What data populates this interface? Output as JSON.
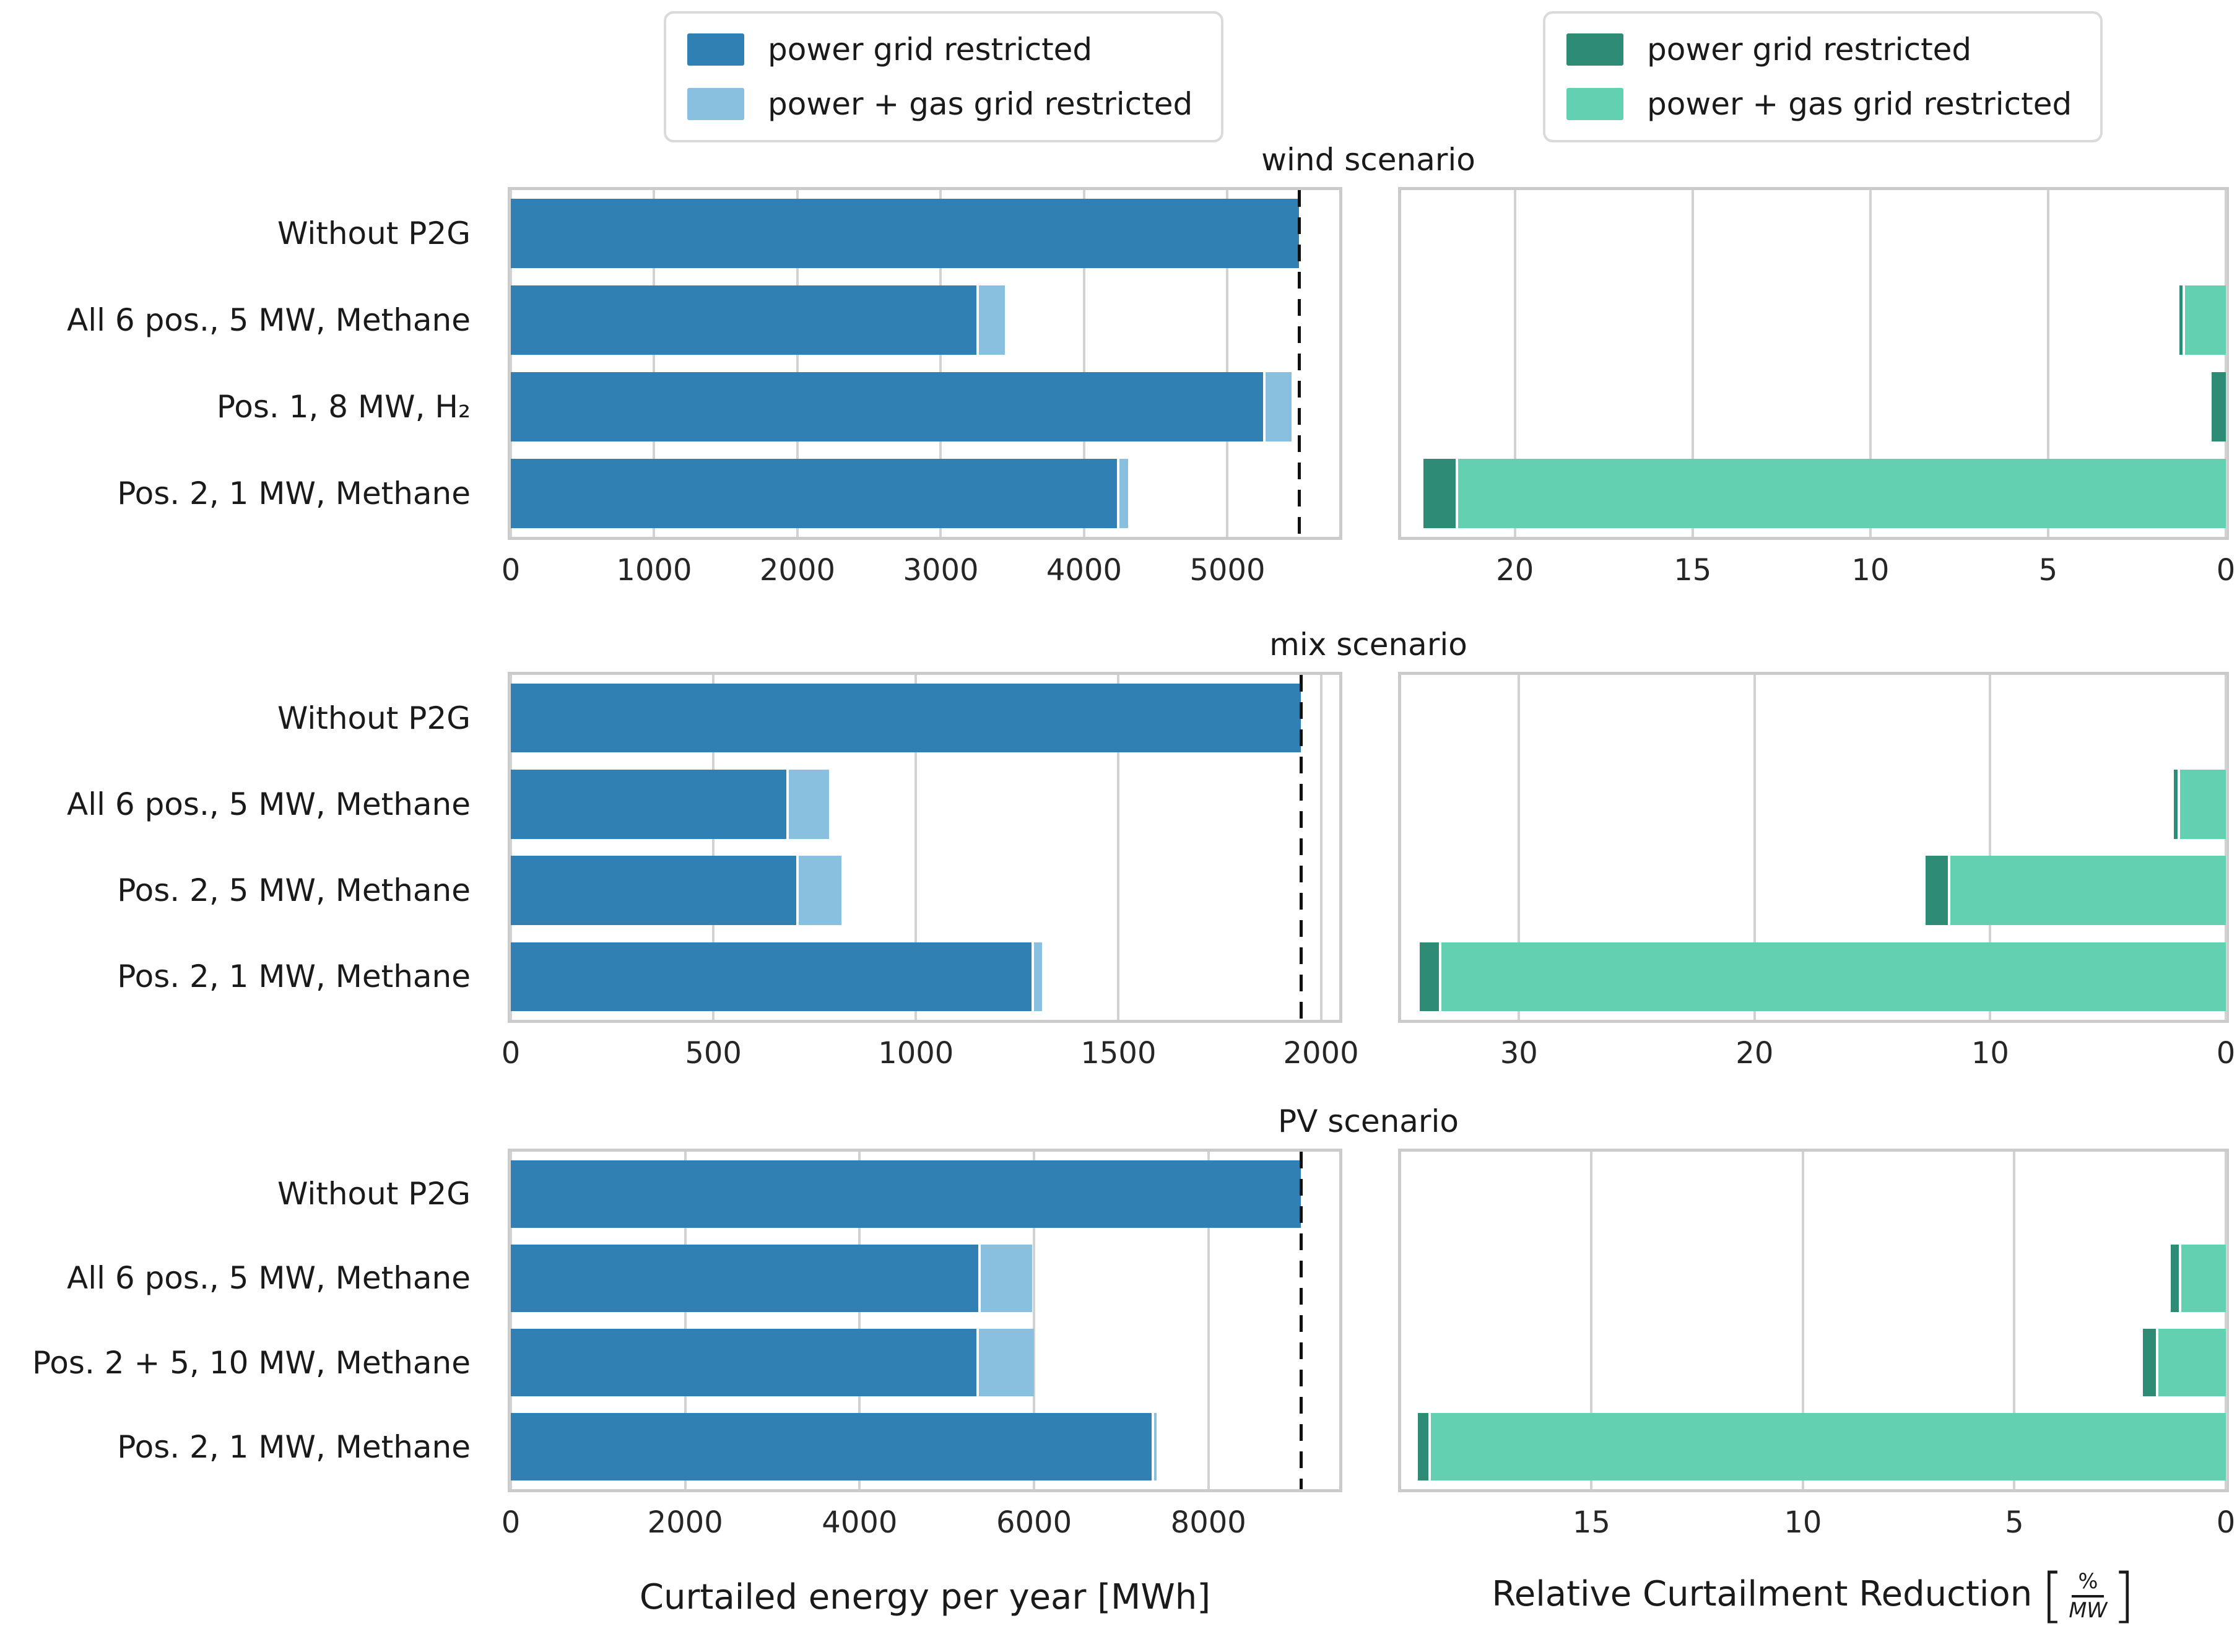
{
  "legends": {
    "left": {
      "items": [
        {
          "label": "power grid restricted",
          "color": "#3080b3"
        },
        {
          "label": "power + gas grid restricted",
          "color": "#89bfdf"
        }
      ]
    },
    "right": {
      "items": [
        {
          "label": "power grid restricted",
          "color": "#2e8b76"
        },
        {
          "label": "power + gas grid restricted",
          "color": "#64d0b2"
        }
      ]
    }
  },
  "xlabels": {
    "left": "Curtailed energy per year [MWh]",
    "right_prefix": "Relative Curtailment Reduction",
    "right_frac_num": "%",
    "right_frac_den": "MW"
  },
  "chart_data": [
    {
      "type": "bar",
      "orientation": "horizontal",
      "title": "wind scenario",
      "categories": [
        "Without P2G",
        "All 6 pos., 5 MW, Methane",
        "Pos. 1, 8 MW, H₂",
        "Pos. 2, 1 MW, Methane"
      ],
      "left_chart": {
        "xlabel": "Curtailed energy per year [MWh]",
        "xlim": [
          0,
          5780
        ],
        "ticks": [
          0,
          1000,
          2000,
          3000,
          4000,
          5000
        ],
        "dashed_reference_line": 5500,
        "grid": true,
        "series": [
          {
            "name": "power grid restricted",
            "color": "#3080b3",
            "values": [
              5500,
              3250,
              5250,
              4230
            ]
          },
          {
            "name": "power + gas grid restricted",
            "color": "#89bfdf",
            "values": [
              0,
              180,
              180,
              60
            ]
          }
        ]
      },
      "right_chart": {
        "xlabel": "Relative Curtailment Reduction [%/MW]",
        "xlim": [
          23.2,
          0
        ],
        "axis_reversed": true,
        "ticks": [
          20,
          15,
          10,
          5,
          0
        ],
        "grid": true,
        "series": [
          {
            "name": "power grid restricted",
            "color": "#2e8b76",
            "values": [
              0,
              0.08,
              0.4,
              0.9
            ]
          },
          {
            "name": "power + gas grid restricted",
            "color": "#64d0b2",
            "values": [
              0,
              1.15,
              0,
              21.6
            ]
          }
        ]
      }
    },
    {
      "type": "bar",
      "orientation": "horizontal",
      "title": "mix scenario",
      "categories": [
        "Without P2G",
        "All 6 pos., 5 MW, Methane",
        "Pos. 2, 5 MW, Methane",
        "Pos. 2, 1 MW, Methane"
      ],
      "left_chart": {
        "xlabel": "Curtailed energy per year [MWh]",
        "xlim": [
          0,
          2045
        ],
        "ticks": [
          0,
          500,
          1000,
          1500,
          2000
        ],
        "dashed_reference_line": 1950,
        "grid": true,
        "series": [
          {
            "name": "power grid restricted",
            "color": "#3080b3",
            "values": [
              1950,
              680,
              705,
              1285
            ]
          },
          {
            "name": "power + gas grid restricted",
            "color": "#89bfdf",
            "values": [
              0,
              100,
              105,
              20
            ]
          }
        ]
      },
      "right_chart": {
        "xlabel": "Relative Curtailment Reduction [%/MW]",
        "xlim": [
          35,
          0
        ],
        "axis_reversed": true,
        "ticks": [
          30,
          20,
          10,
          0
        ],
        "grid": true,
        "series": [
          {
            "name": "power grid restricted",
            "color": "#2e8b76",
            "values": [
              0,
              0.15,
              0.95,
              0.8
            ]
          },
          {
            "name": "power + gas grid restricted",
            "color": "#64d0b2",
            "values": [
              0,
              1.95,
              11.7,
              33.3
            ]
          }
        ]
      }
    },
    {
      "type": "bar",
      "orientation": "horizontal",
      "title": "PV scenario",
      "categories": [
        "Without P2G",
        "All 6 pos., 5 MW, Methane",
        "Pos. 2 + 5, 10 MW, Methane",
        "Pos. 2, 1 MW, Methane"
      ],
      "left_chart": {
        "xlabel": "Curtailed energy per year [MWh]",
        "xlim": [
          0,
          9500
        ],
        "ticks": [
          0,
          2000,
          4000,
          6000,
          8000
        ],
        "dashed_reference_line": 9060,
        "grid": true,
        "series": [
          {
            "name": "power grid restricted",
            "color": "#3080b3",
            "values": [
              9060,
              5360,
              5340,
              7350
            ]
          },
          {
            "name": "power + gas grid restricted",
            "color": "#89bfdf",
            "values": [
              0,
              590,
              630,
              30
            ]
          }
        ]
      },
      "right_chart": {
        "xlabel": "Relative Curtailment Reduction [%/MW]",
        "xlim": [
          19.5,
          0
        ],
        "axis_reversed": true,
        "ticks": [
          15,
          10,
          5,
          0
        ],
        "grid": true,
        "series": [
          {
            "name": "power grid restricted",
            "color": "#2e8b76",
            "values": [
              0,
              0.2,
              0.3,
              0.25
            ]
          },
          {
            "name": "power + gas grid restricted",
            "color": "#64d0b2",
            "values": [
              0,
              1.05,
              1.6,
              18.8
            ]
          }
        ]
      }
    }
  ]
}
